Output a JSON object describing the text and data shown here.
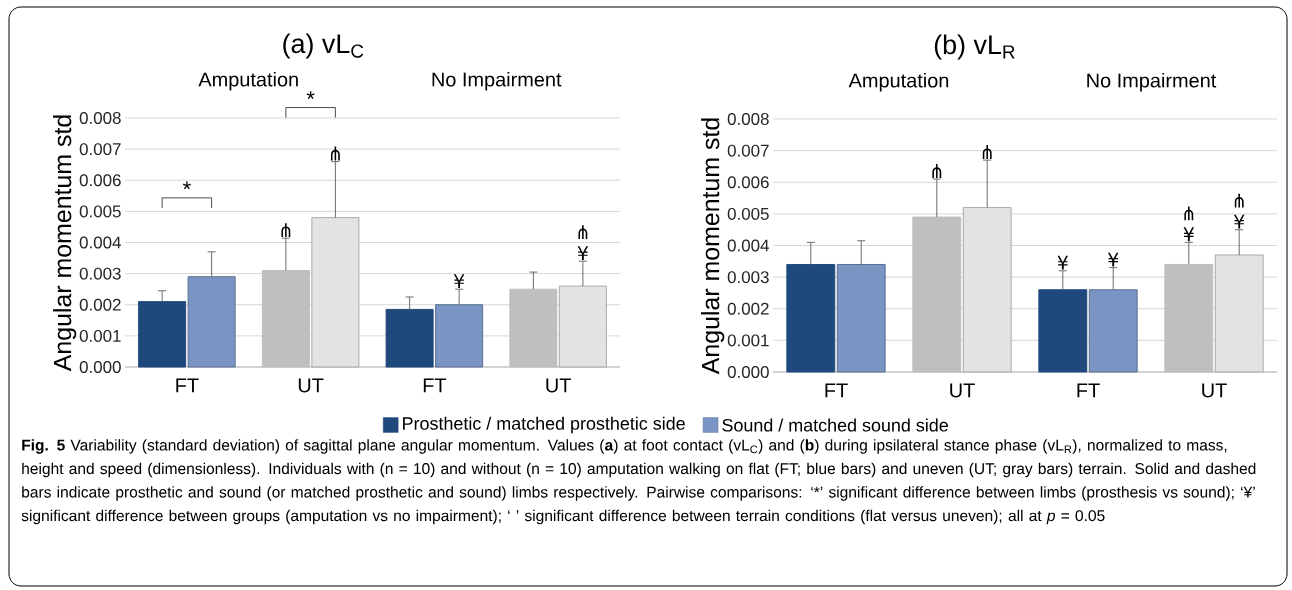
{
  "chart_data": [
    {
      "type": "bar",
      "title": "(a) vL$_{C}$",
      "ylabel": "Angular momentum std",
      "categories": [
        "FT",
        "UT",
        "FT",
        "UT"
      ],
      "series": [
        {
          "name": "Prosthetic / matched prosthetic side",
          "colors": [
            "#1f497d",
            "#bfbfbf",
            "#1f497d",
            "#bfbfbf"
          ],
          "values": [
            0.0021,
            0.0031,
            0.00185,
            0.0025
          ],
          "errors": [
            [
              0.0021,
              0.00245
            ],
            [
              0.0031,
              0.00414
            ],
            [
              0.00185,
              0.00225
            ],
            [
              0.0025,
              0.00305
            ]
          ],
          "value_labels": [
            null,
            "⋔",
            null,
            null
          ]
        },
        {
          "name": "Sound / matched sound side",
          "colors": [
            "#7a94c4",
            "#e3e3e3",
            "#7a94c4",
            "#e3e3e3"
          ],
          "values": [
            0.0029,
            0.0048,
            0.002,
            0.0026
          ],
          "errors": [
            [
              0.0029,
              0.0037
            ],
            [
              0.0048,
              0.0066
            ],
            [
              0.002,
              0.0025
            ],
            [
              0.0026,
              0.0034
            ]
          ],
          "value_labels": [
            null,
            "⋔",
            "¥",
            "⋔ ¥"
          ]
        }
      ],
      "ylim": [
        0,
        0.008
      ],
      "yticks": [
        {
          "value": 0,
          "label": "0.000"
        },
        {
          "value": 0.001,
          "label": "0.001"
        },
        {
          "value": 0.002,
          "label": "0.002"
        },
        {
          "value": 0.003,
          "label": "0.003"
        },
        {
          "value": 0.004,
          "label": "0.004"
        },
        {
          "value": 0.005,
          "label": "0.005"
        },
        {
          "value": 0.006,
          "label": "0.006"
        },
        {
          "value": 0.007,
          "label": "0.007"
        },
        {
          "value": 0.008,
          "label": "0.008"
        }
      ],
      "grid": "y",
      "legend": "bottom",
      "annotations": [
        "Amputation",
        "No Impairment",
        "*",
        "*",
        "**Fig. 5** Variability (standard deviation) of sagittal plane angular momentum. Values (**a**) at foot contact (vL$_{C}$) and (**b**) during ipsilateral stance phase (vL$_{R}$), normalized to mass, height and speed (dimensionless). Individuals with (n = 10) and without (n = 10) amputation walking on flat (FT; blue bars) and uneven (UT; gray bars) terrain. Solid and dashed bars indicate prosthetic and sound (or matched prosthetic and sound) limbs respectively. Pairwise comparisons: ‘*’ significant difference between limbs (prosthesis vs sound); ‘¥’ significant difference between groups (amputation vs no impairment); ‘ ’ significant difference between terrain conditions (flat versus uneven);",
        "all at *p* = 0.05"
      ]
    },
    {
      "type": "bar",
      "title": "(b) vL$_{R}$",
      "ylabel": "Angular momentum std",
      "categories": [
        "FT",
        "UT",
        "FT",
        "UT"
      ],
      "series": [
        {
          "colors": [
            "#1f497d",
            "#bfbfbf",
            "#1f497d",
            "#bfbfbf"
          ],
          "values": [
            0.0034,
            0.0049,
            0.0026,
            0.0034
          ],
          "errors": [
            [
              0.0034,
              0.0041
            ],
            [
              0.0049,
              0.0061
            ],
            [
              0.0026,
              0.0032
            ],
            [
              0.0034,
              0.0041
            ]
          ],
          "value_labels": [
            null,
            "⋔",
            "¥",
            "⋔ ¥"
          ]
        },
        {
          "colors": [
            "#7a94c4",
            "#e3e3e3",
            "#7a94c4",
            "#e3e3e3"
          ],
          "values": [
            0.0034,
            0.0052,
            0.0026,
            0.0037
          ],
          "errors": [
            [
              0.0034,
              0.00415
            ],
            [
              0.0052,
              0.0067
            ],
            [
              0.0026,
              0.0033
            ],
            [
              0.0037,
              0.0045
            ]
          ],
          "value_labels": [
            null,
            "⋔",
            "¥",
            "⋔ ¥"
          ]
        }
      ],
      "ylim": [
        0,
        0.008
      ],
      "yticks": [
        {
          "value": 0,
          "label": "0.000"
        },
        {
          "value": 0.001,
          "label": "0.001"
        },
        {
          "value": 0.002,
          "label": "0.002"
        },
        {
          "value": 0.003,
          "label": "0.003"
        },
        {
          "value": 0.004,
          "label": "0.004"
        },
        {
          "value": 0.005,
          "label": "0.005"
        },
        {
          "value": 0.006,
          "label": "0.006"
        },
        {
          "value": 0.007,
          "label": "0.007"
        },
        {
          "value": 0.008,
          "label": "0.008"
        }
      ],
      "grid": "y",
      "annotations": [
        "Amputation",
        "No Impairment"
      ]
    }
  ]
}
